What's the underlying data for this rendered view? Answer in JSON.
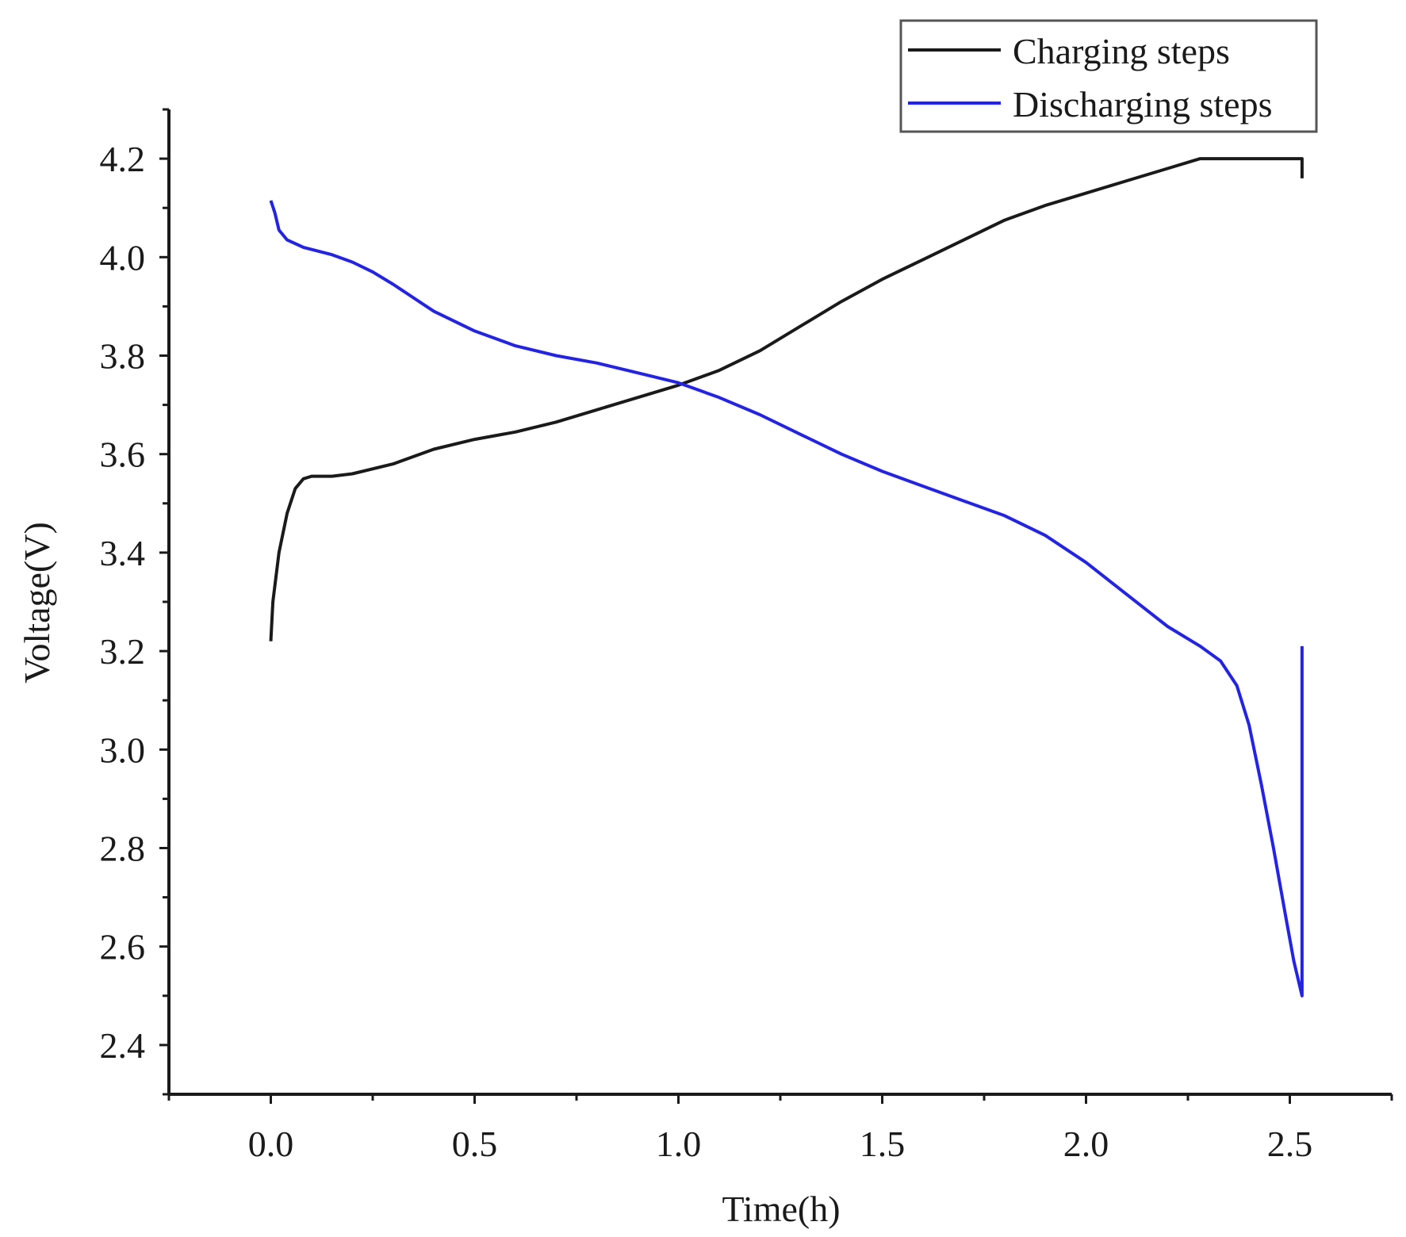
{
  "chart_data": {
    "type": "line",
    "title": "",
    "xlabel": "Time(h)",
    "ylabel": "Voltage(V)",
    "xlim": [
      -0.25,
      2.75
    ],
    "ylim": [
      2.3,
      4.3
    ],
    "x_ticks": [
      0.0,
      0.5,
      1.0,
      1.5,
      2.0,
      2.5
    ],
    "x_tick_labels": [
      "0.0",
      "0.5",
      "1.0",
      "1.5",
      "2.0",
      "2.5"
    ],
    "y_ticks": [
      2.4,
      2.6,
      2.8,
      3.0,
      3.2,
      3.4,
      3.6,
      3.8,
      4.0,
      4.2
    ],
    "y_tick_labels": [
      "2.4",
      "2.6",
      "2.8",
      "3.0",
      "3.2",
      "3.4",
      "3.6",
      "3.8",
      "4.0",
      "4.2"
    ],
    "grid": false,
    "legend": {
      "position": "top-right",
      "entries": [
        "Charging steps",
        "Discharging steps"
      ]
    },
    "series": [
      {
        "name": "Charging steps",
        "color": "#1a1a1a",
        "points": [
          [
            0.0,
            3.22
          ],
          [
            0.005,
            3.3
          ],
          [
            0.02,
            3.4
          ],
          [
            0.04,
            3.48
          ],
          [
            0.06,
            3.53
          ],
          [
            0.08,
            3.55
          ],
          [
            0.1,
            3.555
          ],
          [
            0.15,
            3.555
          ],
          [
            0.2,
            3.56
          ],
          [
            0.3,
            3.58
          ],
          [
            0.4,
            3.61
          ],
          [
            0.5,
            3.63
          ],
          [
            0.6,
            3.645
          ],
          [
            0.7,
            3.665
          ],
          [
            0.8,
            3.69
          ],
          [
            0.9,
            3.715
          ],
          [
            1.0,
            3.74
          ],
          [
            1.1,
            3.77
          ],
          [
            1.2,
            3.81
          ],
          [
            1.3,
            3.86
          ],
          [
            1.4,
            3.91
          ],
          [
            1.5,
            3.955
          ],
          [
            1.6,
            3.995
          ],
          [
            1.7,
            4.035
          ],
          [
            1.8,
            4.075
          ],
          [
            1.9,
            4.105
          ],
          [
            2.0,
            4.13
          ],
          [
            2.1,
            4.155
          ],
          [
            2.2,
            4.18
          ],
          [
            2.28,
            4.2
          ],
          [
            2.35,
            4.2
          ],
          [
            2.45,
            4.2
          ],
          [
            2.53,
            4.2
          ],
          [
            2.53,
            4.16
          ]
        ]
      },
      {
        "name": "Discharging steps",
        "color": "#2323e6",
        "points": [
          [
            0.0,
            4.115
          ],
          [
            0.01,
            4.09
          ],
          [
            0.02,
            4.055
          ],
          [
            0.04,
            4.035
          ],
          [
            0.08,
            4.02
          ],
          [
            0.15,
            4.005
          ],
          [
            0.2,
            3.99
          ],
          [
            0.25,
            3.97
          ],
          [
            0.3,
            3.945
          ],
          [
            0.4,
            3.89
          ],
          [
            0.5,
            3.85
          ],
          [
            0.6,
            3.82
          ],
          [
            0.7,
            3.8
          ],
          [
            0.8,
            3.785
          ],
          [
            0.9,
            3.765
          ],
          [
            1.0,
            3.745
          ],
          [
            1.1,
            3.715
          ],
          [
            1.2,
            3.68
          ],
          [
            1.3,
            3.64
          ],
          [
            1.4,
            3.6
          ],
          [
            1.5,
            3.565
          ],
          [
            1.6,
            3.535
          ],
          [
            1.7,
            3.505
          ],
          [
            1.8,
            3.475
          ],
          [
            1.9,
            3.435
          ],
          [
            2.0,
            3.38
          ],
          [
            2.1,
            3.315
          ],
          [
            2.2,
            3.25
          ],
          [
            2.28,
            3.21
          ],
          [
            2.33,
            3.18
          ],
          [
            2.37,
            3.13
          ],
          [
            2.4,
            3.05
          ],
          [
            2.43,
            2.93
          ],
          [
            2.46,
            2.8
          ],
          [
            2.49,
            2.66
          ],
          [
            2.51,
            2.57
          ],
          [
            2.53,
            2.5
          ],
          [
            2.53,
            3.21
          ]
        ]
      }
    ]
  }
}
